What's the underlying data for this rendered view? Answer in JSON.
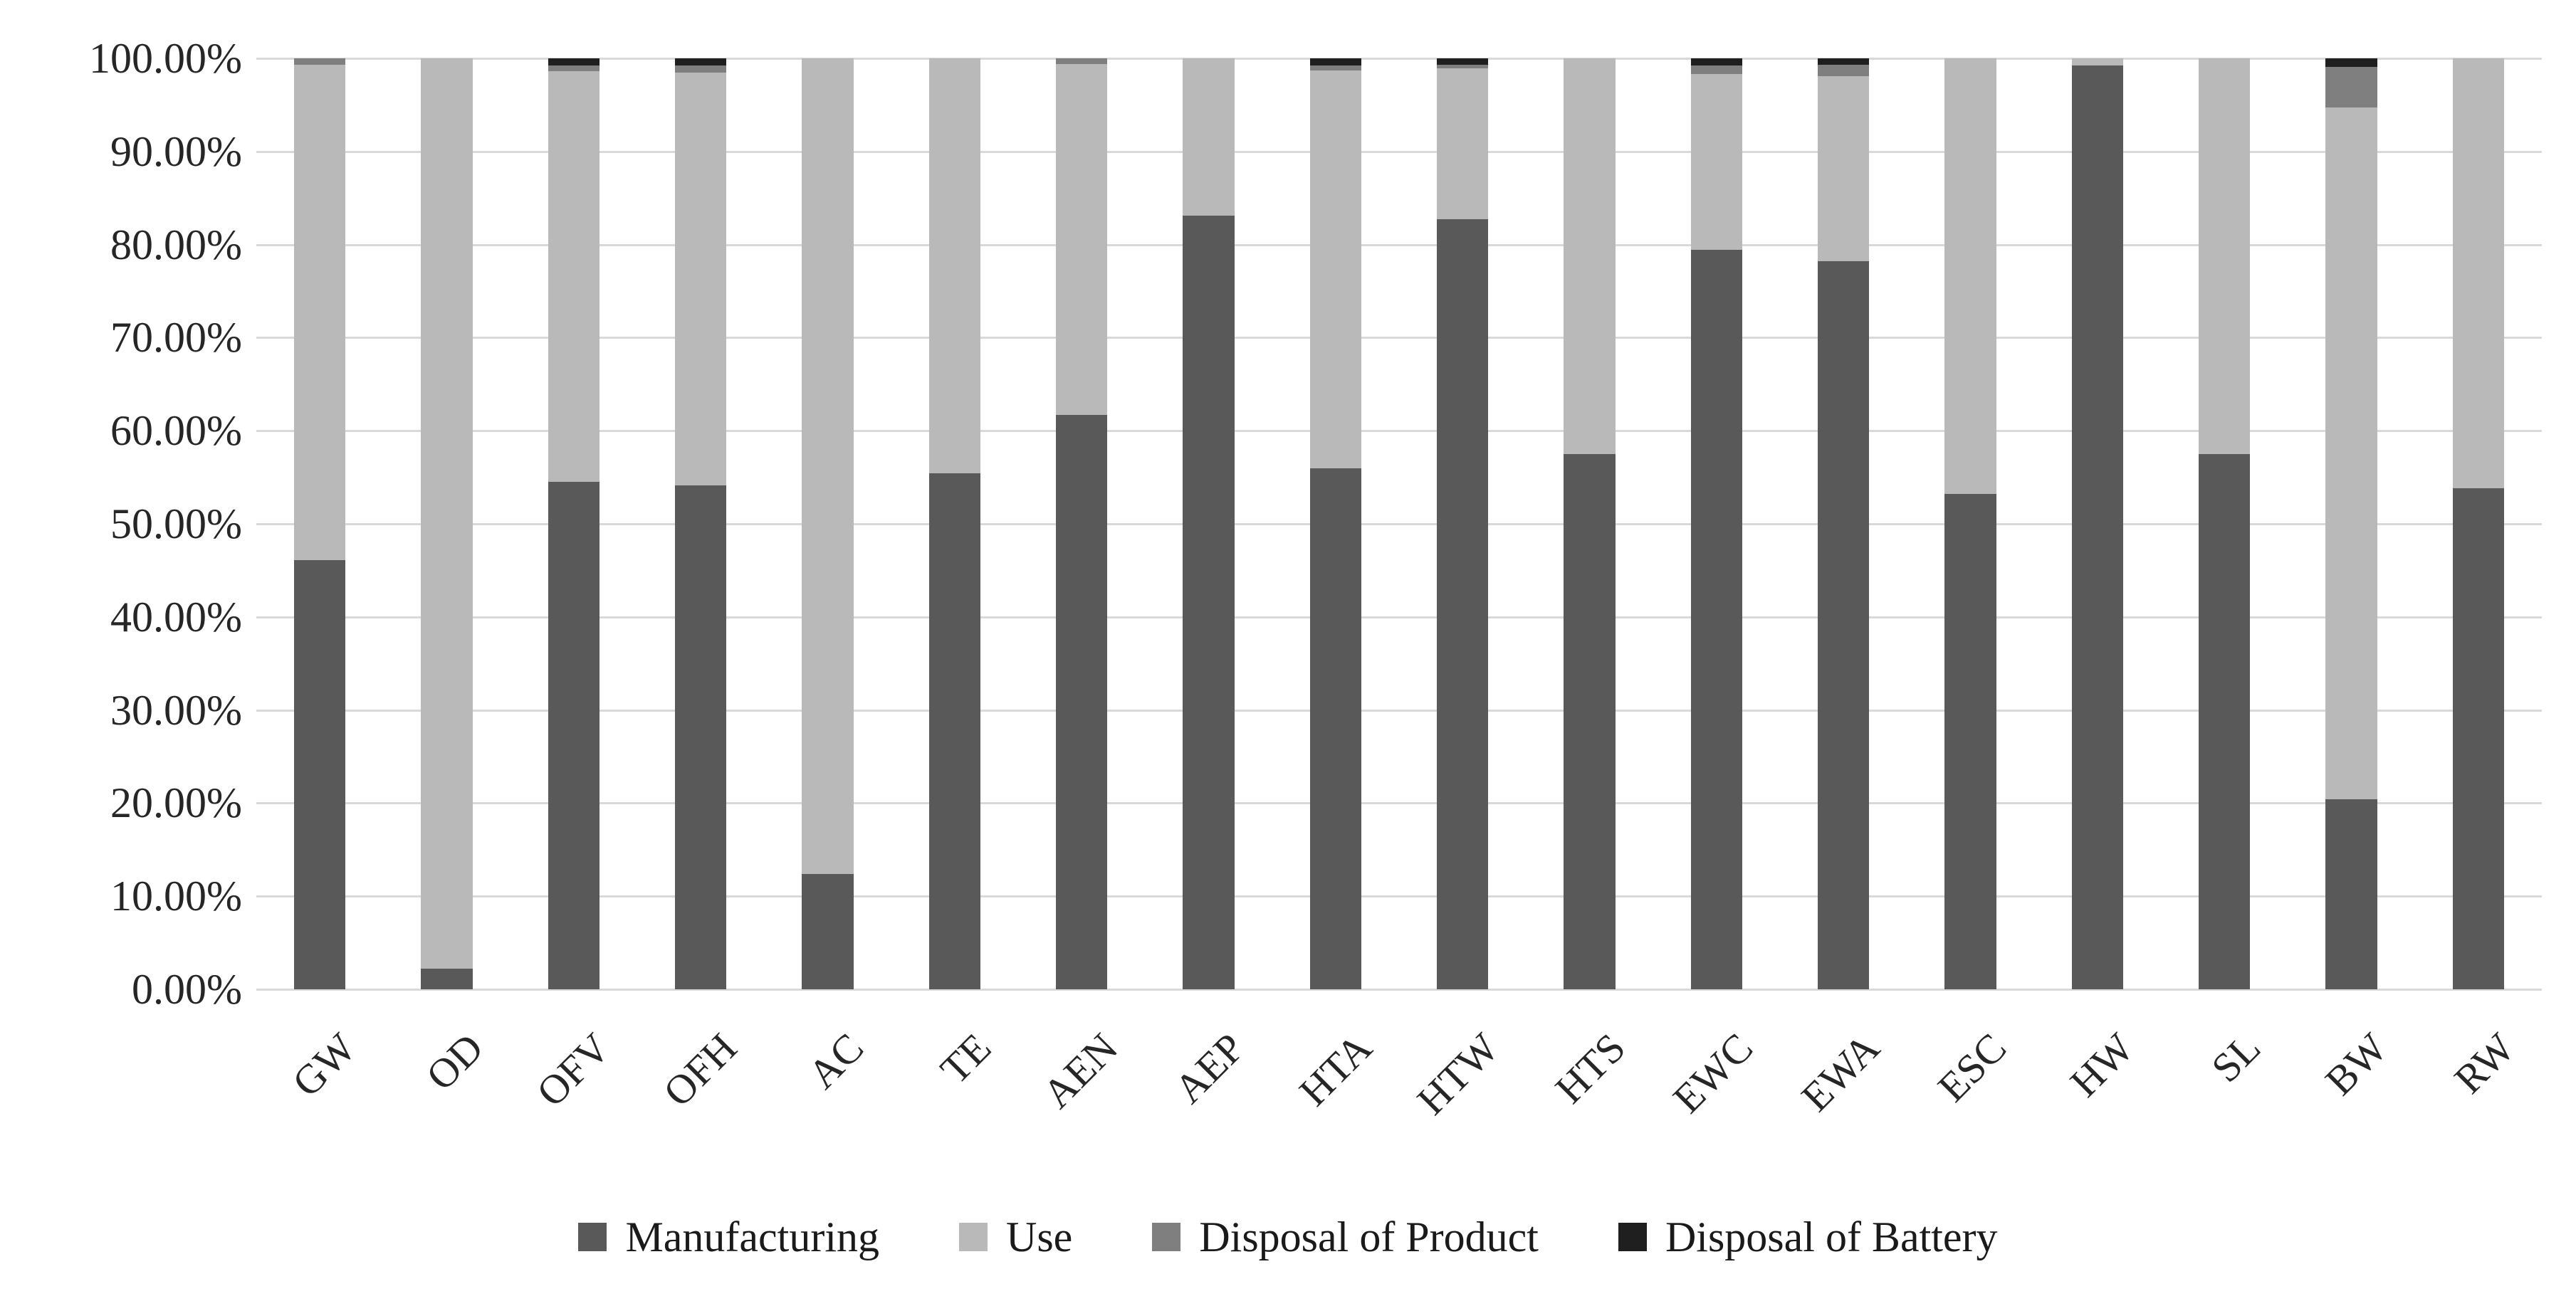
{
  "chart_data": {
    "type": "bar",
    "variant": "stacked-100-percent",
    "title": "",
    "xlabel": "",
    "ylabel": "",
    "ylim": [
      0,
      100
    ],
    "grid": "horizontal",
    "legend_position": "bottom",
    "y_ticks": [
      "100.00%",
      "90.00%",
      "80.00%",
      "70.00%",
      "60.00%",
      "50.00%",
      "40.00%",
      "30.00%",
      "20.00%",
      "10.00%",
      "0.00%"
    ],
    "categories": [
      "GW",
      "OD",
      "OFV",
      "OFH",
      "AC",
      "TE",
      "AEN",
      "AEP",
      "HTA",
      "HTW",
      "HTS",
      "EWC",
      "EWA",
      "ESC",
      "HW",
      "SL",
      "BW",
      "RW"
    ],
    "series": [
      {
        "name": "Manufacturing",
        "color": "#595959",
        "values": [
          46.1,
          2.2,
          54.5,
          54.1,
          12.4,
          55.4,
          61.7,
          83.1,
          56.0,
          82.7,
          57.5,
          79.4,
          78.2,
          53.2,
          99.2,
          57.5,
          20.4,
          53.8
        ]
      },
      {
        "name": "Use",
        "color": "#b9b9b9",
        "values": [
          53.2,
          97.8,
          44.1,
          44.4,
          87.6,
          44.6,
          37.7,
          16.9,
          42.7,
          16.2,
          42.5,
          18.9,
          19.9,
          46.8,
          0.8,
          42.5,
          74.3,
          46.2
        ]
      },
      {
        "name": "Disposal of Product",
        "color": "#7f7f7f",
        "values": [
          0.7,
          0.0,
          0.6,
          0.7,
          0.0,
          0.0,
          0.6,
          0.0,
          0.5,
          0.4,
          0.0,
          0.9,
          1.2,
          0.0,
          0.0,
          0.0,
          4.4,
          0.0
        ]
      },
      {
        "name": "Disposal of Battery",
        "color": "#1f1f1f",
        "values": [
          0.0,
          0.0,
          0.8,
          0.8,
          0.0,
          0.0,
          0.0,
          0.0,
          0.8,
          0.7,
          0.0,
          0.8,
          0.7,
          0.0,
          0.0,
          0.0,
          0.9,
          0.0
        ]
      }
    ],
    "gridline_color": "#d9d9d9",
    "background_color": "#ffffff",
    "text_color": "#262626"
  }
}
